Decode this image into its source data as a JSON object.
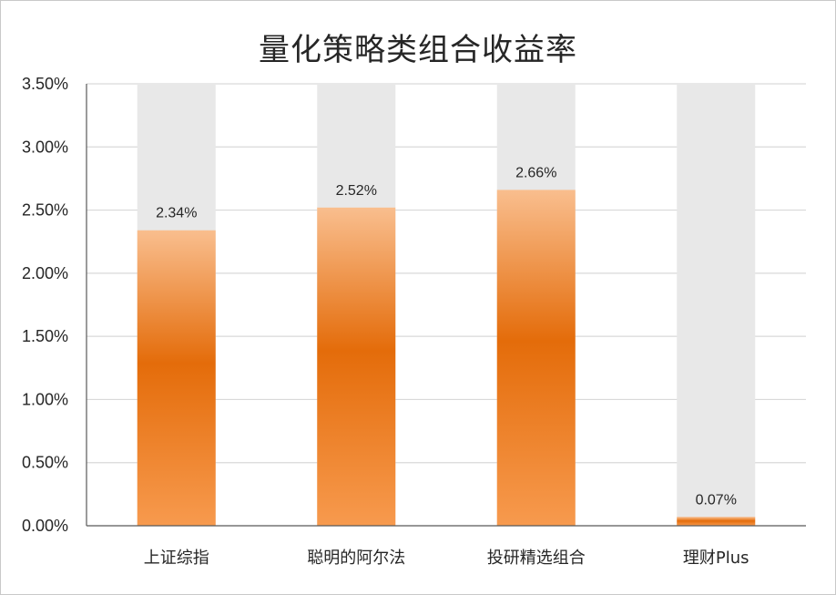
{
  "chart_data": {
    "type": "bar",
    "title": "量化策略类组合收益率",
    "categories": [
      "上证综指",
      "聪明的阿尔法",
      "投研精选组合",
      "理财Plus"
    ],
    "values": [
      2.34,
      2.52,
      2.66,
      0.07
    ],
    "data_labels": [
      "2.34%",
      "2.52%",
      "2.66%",
      "0.07%"
    ],
    "ylim": [
      0,
      3.5
    ],
    "y_ticks": [
      0,
      0.5,
      1.0,
      1.5,
      2.0,
      2.5,
      3.0,
      3.5
    ],
    "y_tick_labels": [
      "0.00%",
      "0.50%",
      "1.00%",
      "1.50%",
      "2.00%",
      "2.50%",
      "3.00%",
      "3.50%"
    ],
    "xlabel": "",
    "ylabel": "",
    "grid": true,
    "legend": "none",
    "background_bars_to_max": true,
    "colors": {
      "bar_top": "#f9be8e",
      "bar_mid": "#e46c0a",
      "bar_bottom": "#f79a4e",
      "background_bar": "#e8e8e8",
      "grid": "#d9d9d9",
      "axis": "#595959"
    }
  }
}
